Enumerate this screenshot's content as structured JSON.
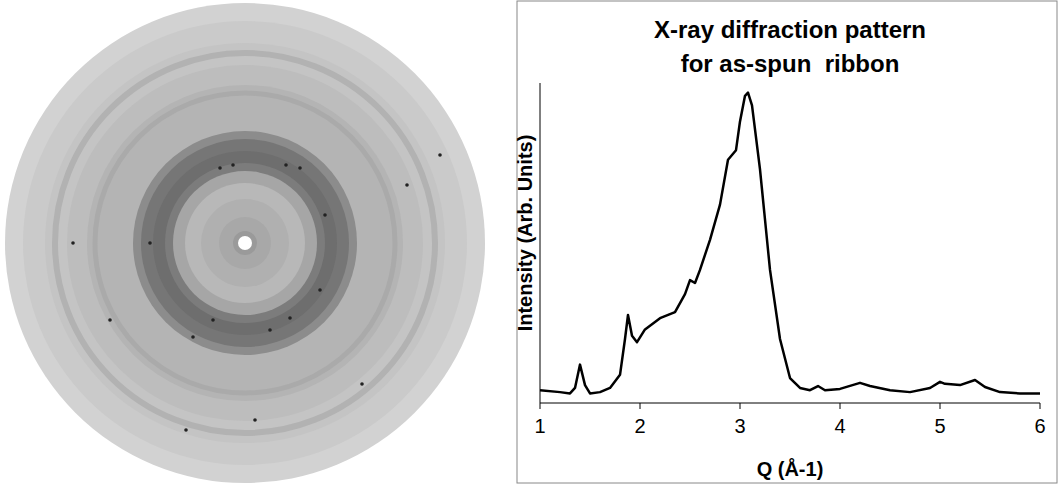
{
  "chart_data": {
    "type": "line",
    "title": [
      "X-ray diffraction pattern",
      "for as-spun  ribbon"
    ],
    "x_label": "Q (Å-1)",
    "y_label": "Intensity (Arb. Units)",
    "x": [
      1.0,
      1.2,
      1.3,
      1.35,
      1.4,
      1.45,
      1.5,
      1.6,
      1.7,
      1.8,
      1.85,
      1.88,
      1.92,
      1.97,
      2.05,
      2.2,
      2.35,
      2.45,
      2.5,
      2.55,
      2.6,
      2.7,
      2.8,
      2.88,
      2.92,
      2.96,
      3.0,
      3.05,
      3.08,
      3.12,
      3.2,
      3.3,
      3.4,
      3.5,
      3.6,
      3.7,
      3.78,
      3.85,
      4.0,
      4.2,
      4.3,
      4.5,
      4.7,
      4.9,
      5.0,
      5.05,
      5.2,
      5.35,
      5.45,
      5.6,
      5.8,
      6.0
    ],
    "values": [
      4,
      3.4,
      3,
      4.7,
      12,
      5.6,
      3,
      3.4,
      4.7,
      8.8,
      20,
      27.5,
      21,
      19,
      23,
      26.5,
      28.4,
      34,
      38.4,
      37.5,
      41.6,
      51,
      62,
      76,
      77.5,
      79,
      88,
      96,
      97,
      93,
      73,
      41.6,
      20,
      7.8,
      4.7,
      4,
      5.3,
      4,
      4.4,
      6.3,
      5.3,
      4,
      3.4,
      4.7,
      6.6,
      6,
      5.6,
      7.2,
      5,
      3.4,
      3,
      3
    ],
    "color": "#000000",
    "xlim": [
      1,
      6
    ],
    "xticks": [
      1,
      2,
      3,
      4,
      5,
      6
    ],
    "ylim": [
      0,
      100
    ],
    "tick_labels": "x",
    "grid": false
  }
}
